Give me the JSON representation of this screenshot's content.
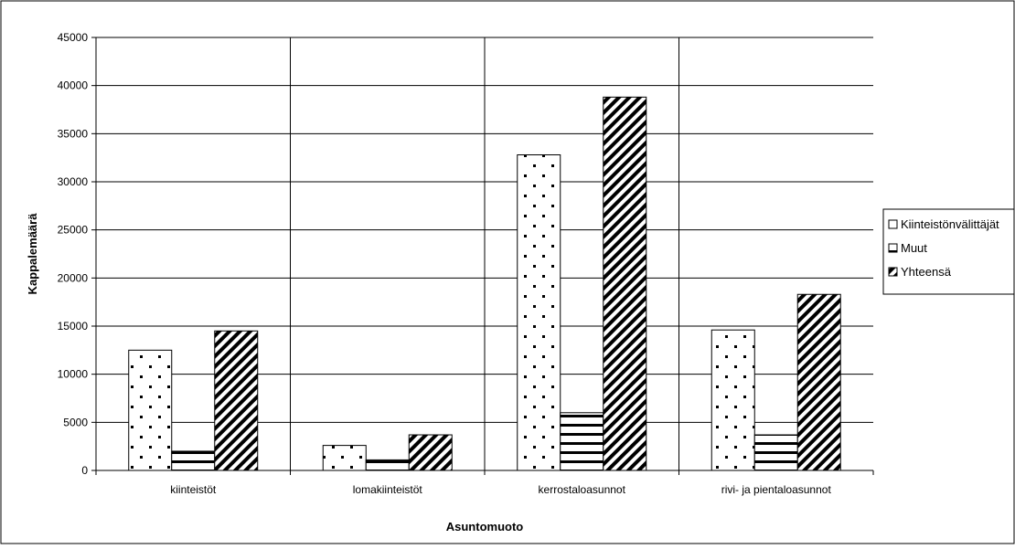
{
  "chart_data": {
    "type": "bar",
    "xlabel": "Asuntomuoto",
    "ylabel": "Kappalemäärä",
    "categories": [
      "kiinteistöt",
      "lomakiinteistöt",
      "kerrostaloasunnot",
      "rivi- ja pientaloasunnot"
    ],
    "series": [
      {
        "name": "Kiinteistönvälittäjät",
        "pattern": "dots",
        "values": [
          12500,
          2600,
          32800,
          14600
        ]
      },
      {
        "name": "Muut",
        "pattern": "horizontal-stripes",
        "values": [
          2000,
          1100,
          6000,
          3700
        ]
      },
      {
        "name": "Yhteensä",
        "pattern": "diagonal-stripes",
        "values": [
          14500,
          3700,
          38800,
          18300
        ]
      }
    ],
    "ylim": [
      0,
      45000
    ],
    "yticks": [
      0,
      5000,
      10000,
      15000,
      20000,
      25000,
      30000,
      35000,
      40000,
      45000
    ],
    "grid": true,
    "legend_position": "right",
    "colors": {
      "stroke": "#000000",
      "background": "#ffffff"
    }
  }
}
